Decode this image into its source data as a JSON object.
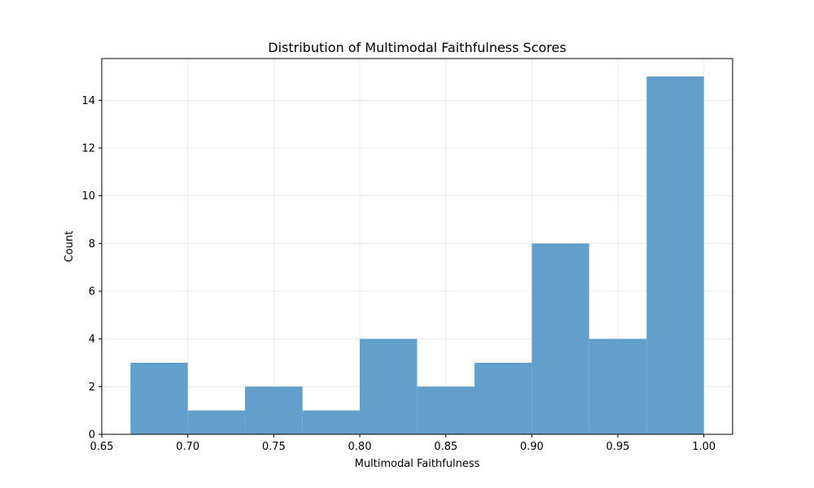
{
  "chart_data": {
    "type": "bar",
    "title": "Distribution of Multimodal Faithfulness Scores",
    "xlabel": "Multimodal Faithfulness",
    "ylabel": "Count",
    "bin_edges": [
      0.6667,
      0.7,
      0.7333,
      0.7667,
      0.8,
      0.8333,
      0.8667,
      0.9,
      0.9333,
      0.9667,
      1.0
    ],
    "values": [
      3,
      1,
      2,
      1,
      4,
      2,
      3,
      8,
      4,
      15
    ],
    "xlim": [
      0.65,
      1.0167
    ],
    "ylim": [
      0,
      15.75
    ],
    "xticks": [
      0.65,
      0.7,
      0.75,
      0.8,
      0.85,
      0.9,
      0.95,
      1.0
    ],
    "xtick_labels": [
      "0.65",
      "0.70",
      "0.75",
      "0.80",
      "0.85",
      "0.90",
      "0.95",
      "1.00"
    ],
    "yticks": [
      0,
      2,
      4,
      6,
      8,
      10,
      12,
      14
    ],
    "ytick_labels": [
      "0",
      "2",
      "4",
      "6",
      "8",
      "10",
      "12",
      "14"
    ],
    "grid": true,
    "bar_color": "#62a0cb"
  }
}
